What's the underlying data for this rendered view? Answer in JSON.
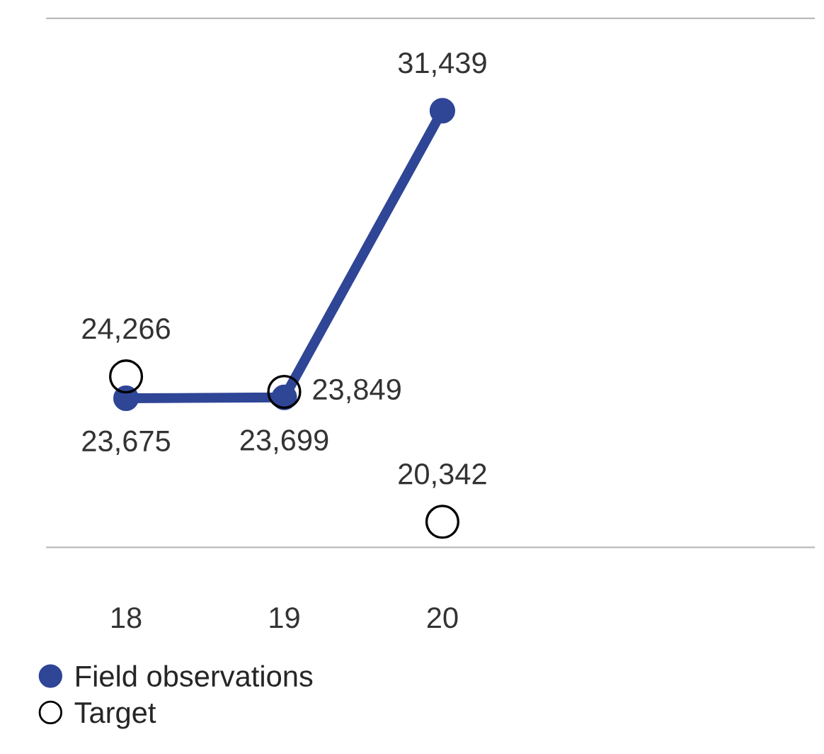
{
  "chart_data": {
    "type": "line",
    "categories": [
      "18",
      "19",
      "20",
      null,
      null
    ],
    "ylim": [
      19650,
      33930
    ],
    "legend": "bottom left",
    "marker": "circle",
    "line_style": "solid",
    "grid": false,
    "series": [
      {
        "name": "Field observations",
        "type": "line",
        "color": "#2f4596",
        "values": [
          23675,
          23699,
          31439,
          null,
          null
        ],
        "value_labels": [
          "23,675",
          "23,699",
          "31,439",
          null,
          null
        ]
      },
      {
        "name": "Target",
        "type": "scatter",
        "color": "#000000",
        "values": [
          24266,
          23849,
          20342,
          null,
          null
        ],
        "value_labels": [
          "24,266",
          "23,849",
          "20,342",
          null,
          null
        ]
      }
    ]
  }
}
